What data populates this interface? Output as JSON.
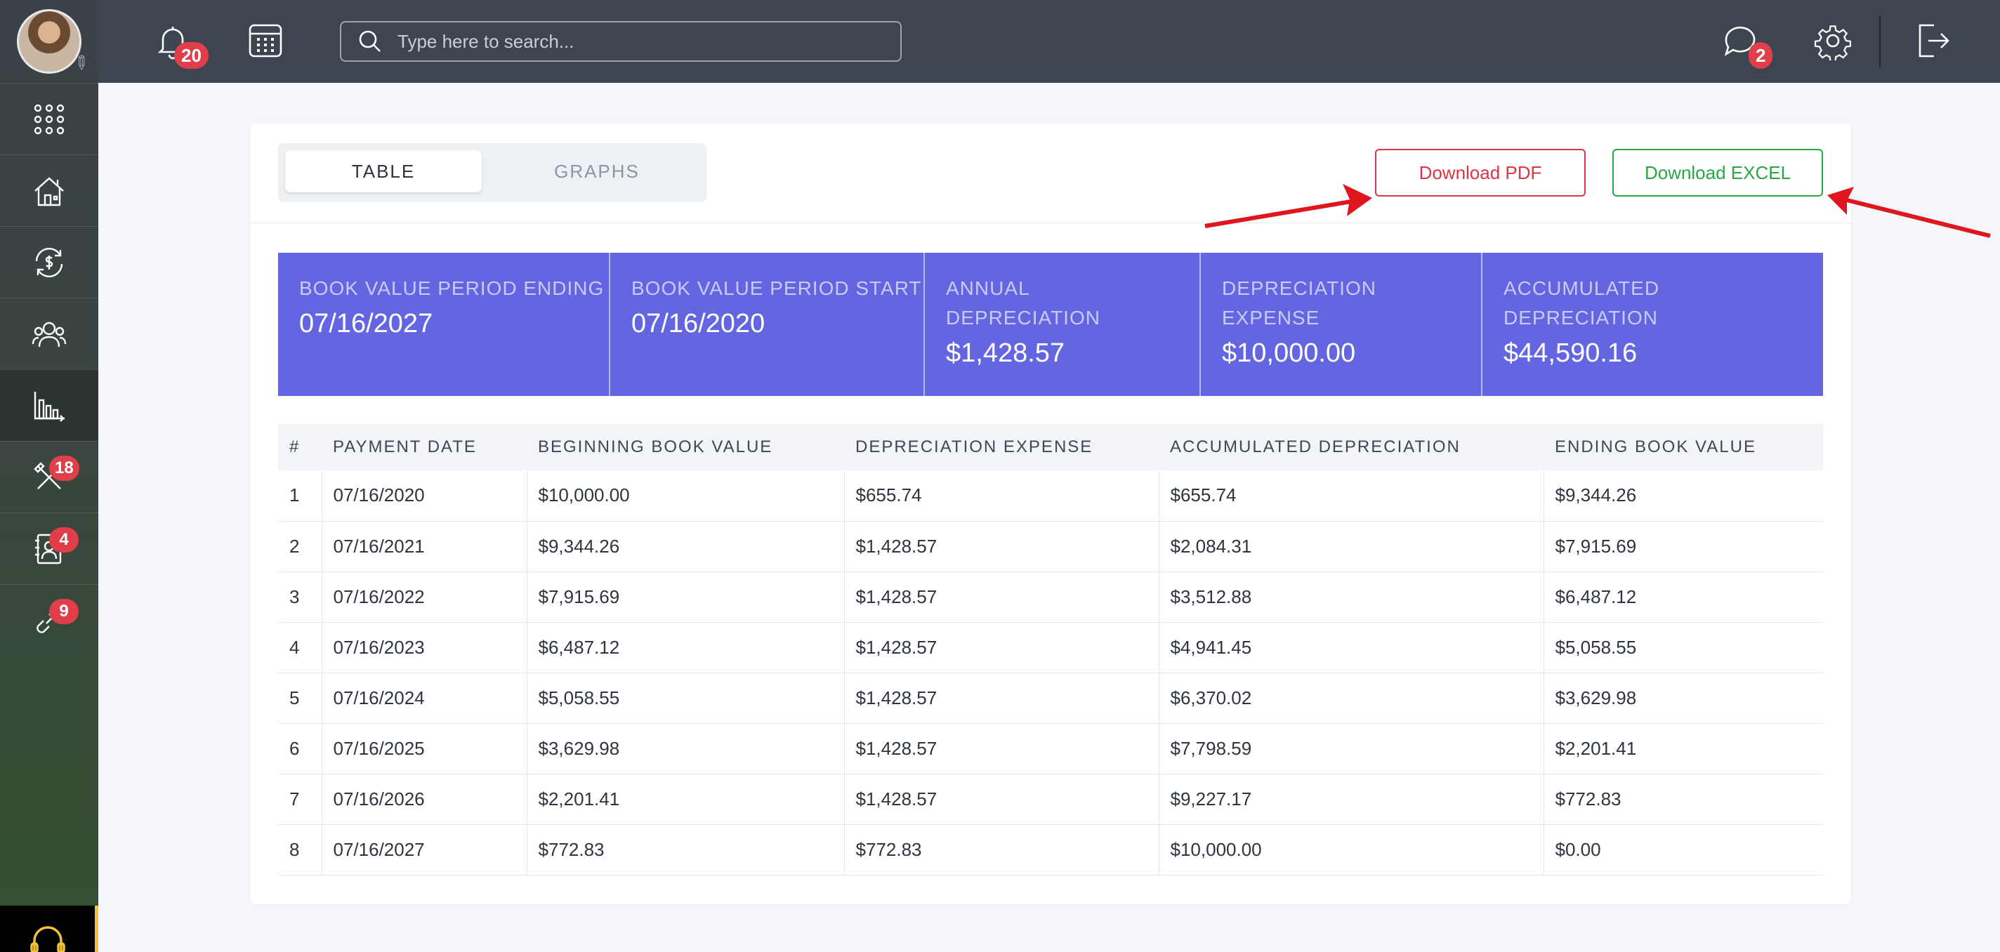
{
  "topbar": {
    "notifications_count": "20",
    "messages_count": "2",
    "search_placeholder": "Type here to search..."
  },
  "sidebar": {
    "badges": {
      "tools": "18",
      "contacts": "4",
      "links": "9"
    }
  },
  "tabs": {
    "table": "TABLE",
    "graphs": "GRAPHS"
  },
  "buttons": {
    "pdf": "Download PDF",
    "excel": "Download EXCEL"
  },
  "summary": [
    {
      "label": "BOOK VALUE PERIOD ENDING",
      "value": "07/16/2027"
    },
    {
      "label": "BOOK VALUE PERIOD START",
      "value": "07/16/2020"
    },
    {
      "label": "ANNUAL DEPRECIATION",
      "value": "$1,428.57"
    },
    {
      "label": "DEPRECIATION EXPENSE",
      "value": "$10,000.00"
    },
    {
      "label": "ACCUMULATED DEPRECIATION",
      "value": "$44,590.16"
    }
  ],
  "table": {
    "headers": [
      "#",
      "PAYMENT DATE",
      "BEGINNING BOOK VALUE",
      "DEPRECIATION EXPENSE",
      "ACCUMULATED DEPRECIATION",
      "ENDING BOOK VALUE"
    ],
    "rows": [
      [
        "1",
        "07/16/2020",
        "$10,000.00",
        "$655.74",
        "$655.74",
        "$9,344.26"
      ],
      [
        "2",
        "07/16/2021",
        "$9,344.26",
        "$1,428.57",
        "$2,084.31",
        "$7,915.69"
      ],
      [
        "3",
        "07/16/2022",
        "$7,915.69",
        "$1,428.57",
        "$3,512.88",
        "$6,487.12"
      ],
      [
        "4",
        "07/16/2023",
        "$6,487.12",
        "$1,428.57",
        "$4,941.45",
        "$5,058.55"
      ],
      [
        "5",
        "07/16/2024",
        "$5,058.55",
        "$1,428.57",
        "$6,370.02",
        "$3,629.98"
      ],
      [
        "6",
        "07/16/2025",
        "$3,629.98",
        "$1,428.57",
        "$7,798.59",
        "$2,201.41"
      ],
      [
        "7",
        "07/16/2026",
        "$2,201.41",
        "$1,428.57",
        "$9,227.17",
        "$772.83"
      ],
      [
        "8",
        "07/16/2027",
        "$772.83",
        "$772.83",
        "$10,000.00",
        "$0.00"
      ]
    ]
  },
  "colors": {
    "accent": "#6366e0",
    "danger": "#dc3545",
    "success": "#28a745",
    "topbar": "#3d4650",
    "annotation_arrow": "#e0161e"
  }
}
